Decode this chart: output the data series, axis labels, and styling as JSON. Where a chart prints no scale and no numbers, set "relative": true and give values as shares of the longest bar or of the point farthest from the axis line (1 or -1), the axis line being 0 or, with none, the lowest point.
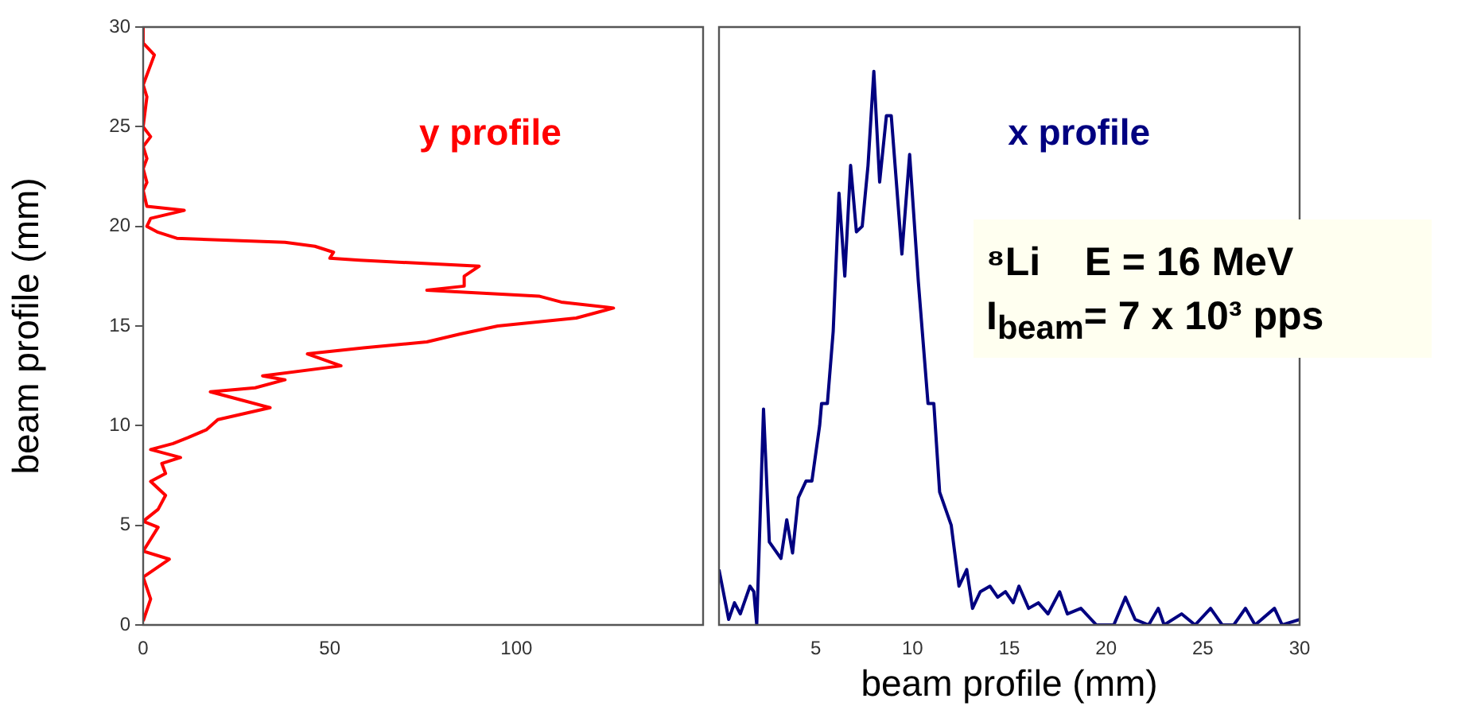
{
  "chart_data": [
    {
      "type": "line",
      "ylabel": "beam profile (mm)",
      "xlim": [
        0,
        150
      ],
      "xticks": [
        0,
        50,
        100
      ],
      "ylim": [
        0,
        30
      ],
      "yticks": [
        0,
        5,
        10,
        15,
        20,
        25,
        30
      ],
      "grid": false,
      "legend": false,
      "marker": "none",
      "series": [
        {
          "name": "y profile",
          "color": "#ff0000",
          "x": [
            0,
            2,
            0,
            7,
            0,
            4,
            0,
            4,
            6,
            2,
            6,
            5,
            10,
            2,
            8,
            12,
            17,
            20,
            34,
            26,
            18,
            30,
            38,
            32,
            53,
            44,
            59,
            76,
            85,
            95,
            116,
            126,
            112,
            106,
            76,
            86,
            86,
            90,
            58,
            50,
            51,
            46,
            38,
            9,
            4,
            1,
            2,
            11,
            1,
            0,
            1,
            0,
            1,
            0,
            2,
            0,
            1,
            0,
            3,
            0,
            0
          ],
          "values": [
            0.2,
            1.3,
            2.4,
            3.3,
            3.7,
            4.9,
            5.2,
            5.8,
            6.5,
            7.2,
            7.6,
            8.1,
            8.4,
            8.8,
            9.1,
            9.4,
            9.8,
            10.3,
            10.9,
            11.3,
            11.7,
            11.9,
            12.3,
            12.5,
            13.0,
            13.6,
            13.9,
            14.2,
            14.6,
            15.0,
            15.4,
            15.9,
            16.2,
            16.5,
            16.8,
            17.0,
            17.5,
            18.0,
            18.3,
            18.4,
            18.7,
            19.0,
            19.2,
            19.4,
            19.7,
            20.0,
            20.4,
            20.8,
            21.0,
            21.8,
            22.2,
            22.9,
            23.4,
            24.0,
            24.5,
            25.0,
            26.5,
            27.1,
            28.6,
            29.2,
            30.0
          ]
        }
      ]
    },
    {
      "type": "line",
      "xlabel": "beam profile (mm)",
      "xlim": [
        0,
        30
      ],
      "xticks": [
        5,
        10,
        15,
        20,
        25,
        30
      ],
      "relative": true,
      "tick_labels": "x",
      "grid": false,
      "legend": false,
      "marker": "none",
      "annotations": [
        "⁸Li    E = 16 MeV",
        "I$_{beam}$= 7 x 10³ pps"
      ],
      "series": [
        {
          "name": "x profile",
          "color": "#000080",
          "x": [
            0,
            0.5,
            0.8,
            1.1,
            1.6,
            1.8,
            1.95,
            2.3,
            2.6,
            3.2,
            3.5,
            3.8,
            4.1,
            4.5,
            4.8,
            5.2,
            5.3,
            5.6,
            5.9,
            6.2,
            6.5,
            6.8,
            7.1,
            7.4,
            7.7,
            8.0,
            8.3,
            8.65,
            8.9,
            9.45,
            9.85,
            10.3,
            10.8,
            11.1,
            11.4,
            12.0,
            12.4,
            12.8,
            13.1,
            13.5,
            14.0,
            14.4,
            14.8,
            15.2,
            15.5,
            16.0,
            16.5,
            17.0,
            17.6,
            18.0,
            18.7,
            19.5,
            20.4,
            21.0,
            21.5,
            22.2,
            22.7,
            23.0,
            23.9,
            24.6,
            25.4,
            26.0,
            26.6,
            27.2,
            27.7,
            28.7,
            29.1,
            30.0
          ],
          "values": [
            0.1,
            0.01,
            0.04,
            0.02,
            0.07,
            0.06,
            0,
            0.39,
            0.15,
            0.12,
            0.19,
            0.13,
            0.23,
            0.26,
            0.26,
            0.36,
            0.4,
            0.4,
            0.53,
            0.78,
            0.63,
            0.83,
            0.71,
            0.72,
            0.83,
            1,
            0.8,
            0.92,
            0.92,
            0.67,
            0.85,
            0.62,
            0.4,
            0.4,
            0.24,
            0.18,
            0.07,
            0.1,
            0.03,
            0.06,
            0.07,
            0.05,
            0.06,
            0.04,
            0.07,
            0.03,
            0.04,
            0.02,
            0.06,
            0.02,
            0.03,
            0,
            0,
            0.05,
            0.01,
            0,
            0.03,
            0,
            0.02,
            0,
            0.03,
            0,
            0,
            0.03,
            0,
            0.03,
            0,
            0.01
          ]
        }
      ]
    }
  ]
}
